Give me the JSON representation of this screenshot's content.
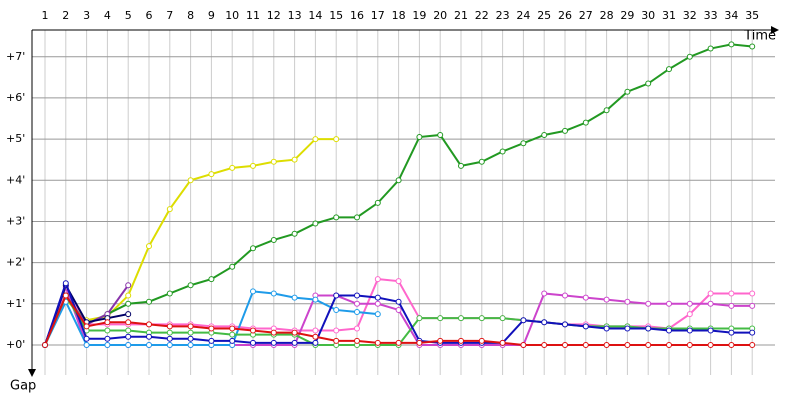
{
  "chart_data": {
    "type": "line",
    "x_label": "Time",
    "y_label": "Gap",
    "categories": [
      "1",
      "2",
      "3",
      "4",
      "5",
      "6",
      "7",
      "8",
      "9",
      "10",
      "11",
      "12",
      "13",
      "14",
      "15",
      "16",
      "17",
      "18",
      "19",
      "20",
      "21",
      "22",
      "23",
      "24",
      "25",
      "26",
      "27",
      "28",
      "29",
      "30",
      "31",
      "32",
      "33",
      "34",
      "35"
    ],
    "ylim": [
      -0.73,
      7.65
    ],
    "yticks": [
      {
        "value": 0,
        "label": "+0'"
      },
      {
        "value": 1,
        "label": "+1'"
      },
      {
        "value": 2,
        "label": "+2'"
      },
      {
        "value": 3,
        "label": "+3'"
      },
      {
        "value": 4,
        "label": "+4'"
      },
      {
        "value": 5,
        "label": "+5'"
      },
      {
        "value": 6,
        "label": "+6'"
      },
      {
        "value": 7,
        "label": "+7'"
      }
    ],
    "grid": true,
    "series": [
      {
        "color": "#ff66cc",
        "values": [
          0,
          1.3,
          0.5,
          0.5,
          0.5,
          0.5,
          0.5,
          0.5,
          0.45,
          0.45,
          0.4,
          0.4,
          0.35,
          0.35,
          0.35,
          0.4,
          1.6,
          1.55,
          0.65,
          0.65,
          0.65,
          0.65,
          0.65,
          0.6,
          0.55,
          0.5,
          0.5,
          0.45,
          0.45,
          0.45,
          0.4,
          0.75,
          1.25,
          1.25,
          1.25
        ]
      },
      {
        "color": "#cc44cc",
        "values": [
          0,
          1.4,
          0,
          0,
          0,
          0,
          0,
          0,
          0,
          0,
          0,
          0,
          0,
          1.2,
          1.2,
          1.0,
          1.0,
          0.85,
          0,
          0,
          0,
          0,
          0,
          0,
          1.25,
          1.2,
          1.15,
          1.1,
          1.05,
          1.0,
          1.0,
          1.0,
          1.0,
          0.95,
          0.95
        ]
      },
      {
        "color": "#dddd00",
        "values": [
          0,
          1.1,
          0.6,
          0.7,
          1.2,
          2.4,
          3.3,
          4.0,
          4.15,
          4.3,
          4.35,
          4.45,
          4.5,
          5.0,
          5.0,
          null,
          null,
          null,
          null,
          null,
          null,
          null,
          null,
          null,
          null,
          null,
          null,
          null,
          null,
          null,
          null,
          null,
          null,
          null,
          null
        ]
      },
      {
        "color": "#229922",
        "values": [
          0,
          1.2,
          0.5,
          0.75,
          1.0,
          1.05,
          1.25,
          1.45,
          1.6,
          1.9,
          2.35,
          2.55,
          2.7,
          2.95,
          3.1,
          3.1,
          3.45,
          4.0,
          5.05,
          5.1,
          4.35,
          4.45,
          4.7,
          4.9,
          5.1,
          5.2,
          5.4,
          5.7,
          6.15,
          6.35,
          6.7,
          7.0,
          7.2,
          7.3,
          7.25
        ]
      },
      {
        "color": "#8833aa",
        "values": [
          0,
          1.2,
          0.5,
          0.75,
          1.45,
          null,
          null,
          null,
          null,
          null,
          null,
          null,
          null,
          null,
          null,
          null,
          null,
          null,
          null,
          null,
          null,
          null,
          null,
          null,
          null,
          null,
          null,
          null,
          null,
          null,
          null,
          null,
          null,
          null,
          null
        ]
      },
      {
        "color": "#000066",
        "values": [
          0,
          1.45,
          0.55,
          0.65,
          0.75,
          null,
          null,
          null,
          null,
          null,
          null,
          null,
          null,
          null,
          null,
          null,
          null,
          null,
          null,
          null,
          null,
          null,
          null,
          null,
          null,
          null,
          null,
          null,
          null,
          null,
          null,
          null,
          null,
          null,
          null
        ]
      },
      {
        "color": "#1e9be9",
        "values": [
          0,
          1.05,
          0,
          0,
          0,
          0,
          0,
          0,
          0,
          0,
          1.3,
          1.25,
          1.15,
          1.1,
          0.85,
          0.8,
          0.75,
          null,
          null,
          null,
          null,
          null,
          null,
          null,
          null,
          null,
          null,
          null,
          null,
          null,
          null,
          null,
          null,
          null,
          null
        ]
      },
      {
        "color": "#44bb44",
        "values": [
          0,
          1.2,
          0.35,
          0.35,
          0.35,
          0.3,
          0.3,
          0.3,
          0.3,
          0.25,
          0.25,
          0.25,
          0.25,
          0,
          0,
          0,
          0,
          0,
          0.65,
          0.65,
          0.65,
          0.65,
          0.65,
          0.6,
          0.55,
          0.5,
          0.45,
          0.45,
          0.45,
          0.4,
          0.4,
          0.4,
          0.4,
          0.4,
          0.4
        ]
      },
      {
        "color": "#1111bb",
        "values": [
          0,
          1.5,
          0.15,
          0.15,
          0.2,
          0.2,
          0.15,
          0.15,
          0.1,
          0.1,
          0.05,
          0.05,
          0.05,
          0.05,
          1.2,
          1.2,
          1.15,
          1.05,
          0.1,
          0.05,
          0.05,
          0.05,
          0.05,
          0.6,
          0.55,
          0.5,
          0.45,
          0.4,
          0.4,
          0.4,
          0.35,
          0.35,
          0.35,
          0.3,
          0.3
        ]
      },
      {
        "color": "#dd1111",
        "values": [
          0,
          1.2,
          0.45,
          0.55,
          0.55,
          0.5,
          0.45,
          0.45,
          0.4,
          0.4,
          0.35,
          0.3,
          0.3,
          0.2,
          0.1,
          0.1,
          0.05,
          0.05,
          0.05,
          0.1,
          0.1,
          0.1,
          0.05,
          0,
          0,
          0,
          0,
          0,
          0,
          0,
          0,
          0,
          0,
          0,
          0
        ]
      }
    ]
  }
}
